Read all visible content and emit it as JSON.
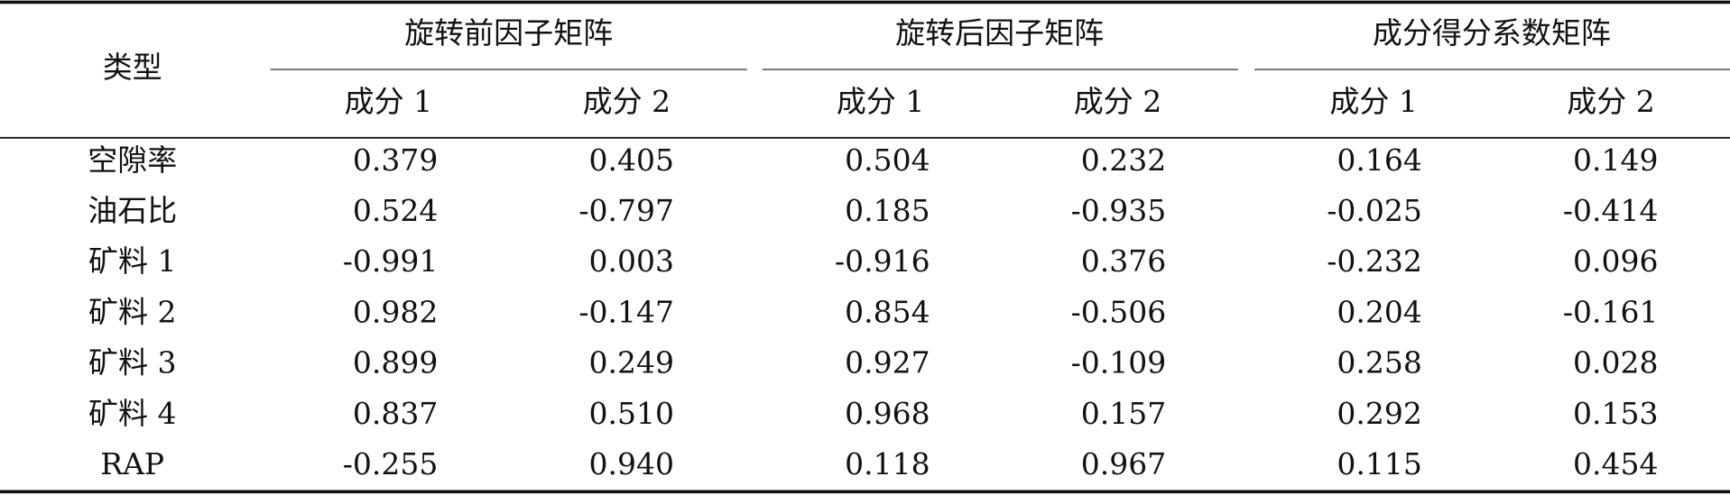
{
  "table": {
    "header": {
      "type": "类型",
      "groups": [
        "旋转前因子矩阵",
        "旋转后因子矩阵",
        "成分得分系数矩阵"
      ],
      "subheaders": [
        "成分 1",
        "成分 2",
        "成分 1",
        "成分 2",
        "成分 1",
        "成分 2"
      ]
    },
    "rows": [
      [
        "空隙率",
        "0.379",
        "0.405",
        "0.504",
        "0.232",
        "0.164",
        "0.149"
      ],
      [
        "油石比",
        "0.524",
        "-0.797",
        "0.185",
        "-0.935",
        "-0.025",
        "-0.414"
      ],
      [
        "矿料 1",
        "-0.991",
        "0.003",
        "-0.916",
        "0.376",
        "-0.232",
        "0.096"
      ],
      [
        "矿料 2",
        "0.982",
        "-0.147",
        "0.854",
        "-0.506",
        "0.204",
        "-0.161"
      ],
      [
        "矿料 3",
        "0.899",
        "0.249",
        "0.927",
        "-0.109",
        "0.258",
        "0.028"
      ],
      [
        "矿料 4",
        "0.837",
        "0.510",
        "0.968",
        "0.157",
        "0.292",
        "0.153"
      ],
      [
        "RAP",
        "-0.255",
        "0.940",
        "0.118",
        "0.967",
        "0.115",
        "0.454"
      ]
    ]
  }
}
